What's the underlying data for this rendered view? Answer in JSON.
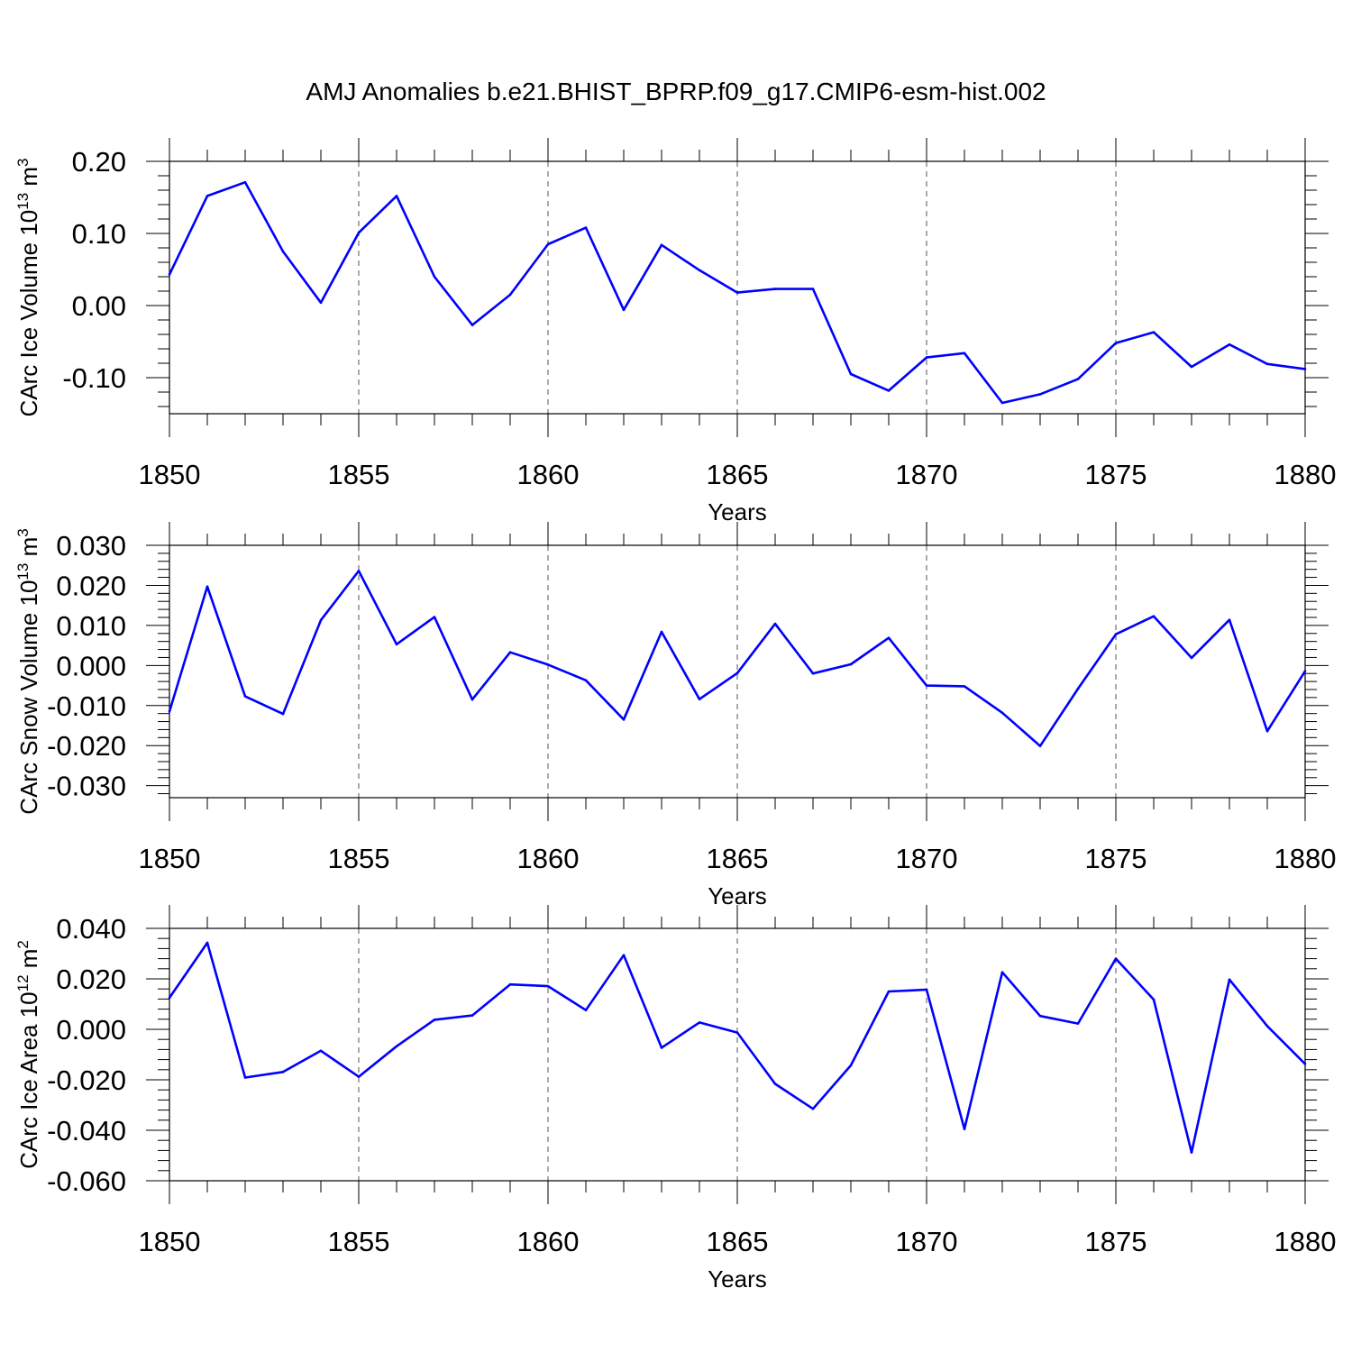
{
  "title": "AMJ Anomalies b.e21.BHIST_BPRP.f09_g17.CMIP6-esm-hist.002",
  "colors": {
    "series": "#0000ff",
    "axes": "#000000",
    "grid": "#555555"
  },
  "chart_data": [
    {
      "type": "line",
      "ylabel": {
        "text": "CArc Ice Volume 10",
        "exp": "13",
        "unit": " m",
        "unit_exp": "3"
      },
      "xlabel": "Years",
      "xlim": [
        1850,
        1880
      ],
      "ylim": [
        -0.15,
        0.2
      ],
      "yticks": [
        0.2,
        0.1,
        0.0,
        -0.1
      ],
      "yticklabels": [
        "0.20",
        "0.10",
        "0.00",
        "-0.10"
      ],
      "xticks": [
        1850,
        1855,
        1860,
        1865,
        1870,
        1875,
        1880
      ],
      "xticklabels": [
        "1850",
        "1855",
        "1860",
        "1865",
        "1870",
        "1875",
        "1880"
      ],
      "grid": "dashed vertical at major x ticks",
      "x": [
        1850,
        1851,
        1852,
        1853,
        1854,
        1855,
        1856,
        1857,
        1858,
        1859,
        1860,
        1861,
        1862,
        1863,
        1864,
        1865,
        1866,
        1867,
        1868,
        1869,
        1870,
        1871,
        1872,
        1873,
        1874,
        1875,
        1876,
        1877,
        1878,
        1879,
        1880
      ],
      "values": [
        0.043,
        0.152,
        0.171,
        0.075,
        0.004,
        0.101,
        0.152,
        0.04,
        -0.027,
        0.015,
        0.085,
        0.108,
        -0.006,
        0.084,
        0.049,
        0.018,
        0.023,
        0.023,
        -0.095,
        -0.118,
        -0.072,
        -0.066,
        -0.135,
        -0.123,
        -0.102,
        -0.052,
        -0.037,
        -0.085,
        -0.054,
        -0.081,
        -0.088
      ]
    },
    {
      "type": "line",
      "ylabel": {
        "text": "CArc Snow Volume 10",
        "exp": "13",
        "unit": " m",
        "unit_exp": "3"
      },
      "xlabel": "Years",
      "xlim": [
        1850,
        1880
      ],
      "ylim": [
        -0.033,
        0.03
      ],
      "yticks": [
        0.03,
        0.02,
        0.01,
        0.0,
        -0.01,
        -0.02,
        -0.03
      ],
      "yticklabels": [
        "0.030",
        "0.020",
        "0.010",
        "0.000",
        "-0.010",
        "-0.020",
        "-0.030"
      ],
      "xticks": [
        1850,
        1855,
        1860,
        1865,
        1870,
        1875,
        1880
      ],
      "xticklabels": [
        "1850",
        "1855",
        "1860",
        "1865",
        "1870",
        "1875",
        "1880"
      ],
      "grid": "dashed vertical at major x ticks",
      "x": [
        1850,
        1851,
        1852,
        1853,
        1854,
        1855,
        1856,
        1857,
        1858,
        1859,
        1860,
        1861,
        1862,
        1863,
        1864,
        1865,
        1866,
        1867,
        1868,
        1869,
        1870,
        1871,
        1872,
        1873,
        1874,
        1875,
        1876,
        1877,
        1878,
        1879,
        1880
      ],
      "values": [
        -0.0115,
        0.0197,
        -0.0077,
        -0.0121,
        0.0113,
        0.0236,
        0.0053,
        0.0121,
        -0.0085,
        0.0033,
        0.0002,
        -0.0037,
        -0.0135,
        0.0084,
        -0.0084,
        -0.0019,
        0.0104,
        -0.002,
        0.0003,
        0.0069,
        -0.005,
        -0.0052,
        -0.0118,
        -0.0201,
        -0.0058,
        0.0078,
        0.0123,
        0.0019,
        0.0114,
        -0.0164,
        -0.0014
      ]
    },
    {
      "type": "line",
      "ylabel": {
        "text": "CArc Ice Area 10",
        "exp": "12",
        "unit": " m",
        "unit_exp": "2"
      },
      "xlabel": "Years",
      "xlim": [
        1850,
        1880
      ],
      "ylim": [
        -0.06,
        0.04
      ],
      "yticks": [
        0.04,
        0.02,
        0.0,
        -0.02,
        -0.04,
        -0.06
      ],
      "yticklabels": [
        "0.040",
        "0.020",
        "0.000",
        "-0.020",
        "-0.040",
        "-0.060"
      ],
      "xticks": [
        1850,
        1855,
        1860,
        1865,
        1870,
        1875,
        1880
      ],
      "xticklabels": [
        "1850",
        "1855",
        "1860",
        "1865",
        "1870",
        "1875",
        "1880"
      ],
      "grid": "dashed vertical at major x ticks",
      "x": [
        1850,
        1851,
        1852,
        1853,
        1854,
        1855,
        1856,
        1857,
        1858,
        1859,
        1860,
        1861,
        1862,
        1863,
        1864,
        1865,
        1866,
        1867,
        1868,
        1869,
        1870,
        1871,
        1872,
        1873,
        1874,
        1875,
        1876,
        1877,
        1878,
        1879,
        1880
      ],
      "values": [
        0.0125,
        0.0343,
        -0.0191,
        -0.0169,
        -0.0085,
        -0.0188,
        -0.0067,
        0.0038,
        0.0055,
        0.0178,
        0.0171,
        0.0076,
        0.0294,
        -0.0073,
        0.0027,
        -0.0013,
        -0.0216,
        -0.0315,
        -0.0143,
        0.015,
        0.0157,
        -0.0395,
        0.0226,
        0.0053,
        0.0023,
        0.028,
        0.0118,
        -0.0488,
        0.0197,
        0.0013,
        -0.0137
      ]
    }
  ]
}
